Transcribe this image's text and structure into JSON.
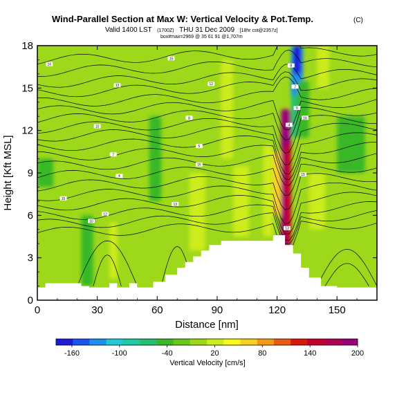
{
  "chart_data": {
    "type": "heatmap",
    "title": "Wind-Parallel Section at Max W: Vertical Velocity & Pot.Temp.",
    "title_mark": "(C)",
    "subtitle_main": "Valid 1400 LST",
    "subtitle_small1": "(1700Z)",
    "subtitle_date": "THU 31 Dec 2009",
    "subtitle_small2": "[18hr cst@2357z]",
    "subtitle_line3": "box#max=2969 @ 35 61 91 @1,707m",
    "xlabel": "Distance [nm]",
    "ylabel": "Height [Kft MSL]",
    "xlim": [
      0,
      170
    ],
    "ylim": [
      0,
      18
    ],
    "x_ticks": [
      0,
      30,
      60,
      90,
      120,
      150
    ],
    "y_ticks": [
      0,
      3,
      6,
      9,
      12,
      15,
      18
    ],
    "colorbar": {
      "label": "Vertical Velocity [cm/s]",
      "range": [
        -180,
        200
      ],
      "tick_labels": [
        "-160",
        "-100",
        "-40",
        "20",
        "80",
        "140",
        "200"
      ],
      "tick_values": [
        -160,
        -100,
        -40,
        20,
        80,
        140,
        200
      ],
      "colors": [
        "#1c1cd8",
        "#1a55ee",
        "#1c8fec",
        "#20c8d8",
        "#20c8a4",
        "#22c070",
        "#38b828",
        "#66c818",
        "#9ed81a",
        "#ccec1c",
        "#fafa18",
        "#fad020",
        "#f59a18",
        "#ec5a10",
        "#d81808",
        "#c4002c",
        "#b40050",
        "#9a0078"
      ]
    },
    "terrain": [
      {
        "x": 0,
        "h": 0.9
      },
      {
        "x": 4,
        "h": 0.9
      },
      {
        "x": 4,
        "h": 1.2
      },
      {
        "x": 22,
        "h": 1.2
      },
      {
        "x": 22,
        "h": 1.0
      },
      {
        "x": 26,
        "h": 1.0
      },
      {
        "x": 26,
        "h": 0.9
      },
      {
        "x": 36,
        "h": 0.9
      },
      {
        "x": 36,
        "h": 1.2
      },
      {
        "x": 40,
        "h": 1.2
      },
      {
        "x": 40,
        "h": 0.9
      },
      {
        "x": 46,
        "h": 0.9
      },
      {
        "x": 46,
        "h": 1.2
      },
      {
        "x": 50,
        "h": 1.2
      },
      {
        "x": 50,
        "h": 0.9
      },
      {
        "x": 58,
        "h": 0.9
      },
      {
        "x": 58,
        "h": 1.3
      },
      {
        "x": 64,
        "h": 1.3
      },
      {
        "x": 64,
        "h": 1.8
      },
      {
        "x": 70,
        "h": 1.8
      },
      {
        "x": 70,
        "h": 2.3
      },
      {
        "x": 74,
        "h": 2.3
      },
      {
        "x": 74,
        "h": 2.7
      },
      {
        "x": 78,
        "h": 2.7
      },
      {
        "x": 78,
        "h": 3.1
      },
      {
        "x": 82,
        "h": 3.1
      },
      {
        "x": 82,
        "h": 3.5
      },
      {
        "x": 86,
        "h": 3.5
      },
      {
        "x": 86,
        "h": 3.9
      },
      {
        "x": 92,
        "h": 3.9
      },
      {
        "x": 92,
        "h": 4.2
      },
      {
        "x": 118,
        "h": 4.2
      },
      {
        "x": 118,
        "h": 4.6
      },
      {
        "x": 124,
        "h": 4.6
      },
      {
        "x": 124,
        "h": 3.9
      },
      {
        "x": 128,
        "h": 3.9
      },
      {
        "x": 128,
        "h": 3.3
      },
      {
        "x": 132,
        "h": 3.3
      },
      {
        "x": 132,
        "h": 2.3
      },
      {
        "x": 136,
        "h": 2.3
      },
      {
        "x": 136,
        "h": 1.6
      },
      {
        "x": 142,
        "h": 1.6
      },
      {
        "x": 142,
        "h": 1.0
      },
      {
        "x": 150,
        "h": 1.0
      },
      {
        "x": 150,
        "h": 0.9
      },
      {
        "x": 170,
        "h": 0.9
      }
    ],
    "background_value": -10,
    "features": [
      {
        "x0": 122,
        "x1": 127,
        "y0": 3.8,
        "y1": 13.5,
        "v": 190
      },
      {
        "x0": 124,
        "x1": 127,
        "y0": 4.0,
        "y1": 11.0,
        "v": 150
      },
      {
        "x0": 118,
        "x1": 122,
        "y0": 6.0,
        "y1": 10.5,
        "v": 60
      },
      {
        "x0": 113,
        "x1": 118,
        "y0": 4.5,
        "y1": 11.0,
        "v": 20
      },
      {
        "x0": 127,
        "x1": 133,
        "y0": 14.0,
        "y1": 18.0,
        "v": -120
      },
      {
        "x0": 128,
        "x1": 132,
        "y0": 16.0,
        "y1": 18.0,
        "v": -165
      },
      {
        "x0": 127,
        "x1": 130,
        "y0": 11.5,
        "y1": 14.5,
        "v": -70
      },
      {
        "x0": 130,
        "x1": 136,
        "y0": 11.5,
        "y1": 15.5,
        "v": -40
      },
      {
        "x0": 76,
        "x1": 84,
        "y0": 3.5,
        "y1": 9.0,
        "v": 20
      },
      {
        "x0": 98,
        "x1": 106,
        "y0": 4.5,
        "y1": 9.5,
        "v": 20
      },
      {
        "x0": 92,
        "x1": 98,
        "y0": 10.0,
        "y1": 17.0,
        "v": 20
      },
      {
        "x0": 136,
        "x1": 144,
        "y0": 5.0,
        "y1": 9.0,
        "v": 20
      },
      {
        "x0": 22,
        "x1": 28,
        "y0": 1.0,
        "y1": 6.0,
        "v": -40
      },
      {
        "x0": 56,
        "x1": 62,
        "y0": 7.0,
        "y1": 13.0,
        "v": -40
      },
      {
        "x0": 0,
        "x1": 8,
        "y0": 8.0,
        "y1": 10.0,
        "v": -40
      },
      {
        "x0": 36,
        "x1": 40,
        "y0": 1.5,
        "y1": 5.5,
        "v": 20
      },
      {
        "x0": 150,
        "x1": 164,
        "y0": 9.0,
        "y1": 13.0,
        "v": -40
      },
      {
        "x0": 140,
        "x1": 146,
        "y0": 15.0,
        "y1": 18.0,
        "v": 20
      }
    ],
    "contour_labels": [
      "16",
      "15",
      "13",
      "12",
      "10",
      "8",
      "7",
      "5",
      "4"
    ],
    "contour_label_pos": [
      [
        6,
        16.7
      ],
      [
        67,
        17.1
      ],
      [
        40,
        15.2
      ],
      [
        87,
        15.3
      ],
      [
        30,
        12.3
      ],
      [
        76,
        12.9
      ],
      [
        38,
        10.3
      ],
      [
        81,
        10.9
      ],
      [
        41,
        8.8
      ],
      [
        81,
        9.6
      ],
      [
        13,
        7.2
      ],
      [
        69,
        6.8
      ],
      [
        34,
        6.1
      ],
      [
        27,
        5.6
      ],
      [
        127,
        16.6
      ],
      [
        129,
        15.1
      ],
      [
        130,
        13.6
      ],
      [
        126,
        12.4
      ],
      [
        134,
        12.9
      ],
      [
        133,
        8.9
      ],
      [
        125,
        5.1
      ]
    ]
  }
}
